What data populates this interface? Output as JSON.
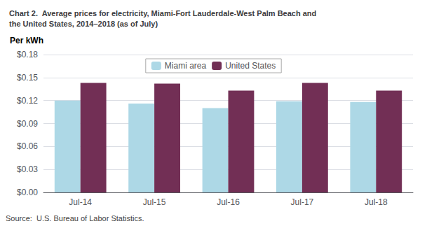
{
  "chart_data": {
    "type": "bar",
    "title": "Chart 2.  Average prices for electricity, Miami-Fort Lauderdale-West Palm Beach and\nthe United States, 2014–2018 (as of July)",
    "ylabel": "Per kWh",
    "categories": [
      "Jul-14",
      "Jul-15",
      "Jul-16",
      "Jul-17",
      "Jul-18"
    ],
    "series": [
      {
        "name": "Miami area",
        "color": "#ADD8E6",
        "values": [
          0.12,
          0.116,
          0.11,
          0.119,
          0.118
        ]
      },
      {
        "name": "United States",
        "color": "#722F55",
        "values": [
          0.143,
          0.142,
          0.133,
          0.143,
          0.133
        ]
      }
    ],
    "ylim": [
      0.0,
      0.18
    ],
    "yticks": [
      {
        "value": 0.0,
        "label": "$0.00"
      },
      {
        "value": 0.03,
        "label": "$0.03"
      },
      {
        "value": 0.06,
        "label": "$0.06"
      },
      {
        "value": 0.09,
        "label": "$0.09"
      },
      {
        "value": 0.12,
        "label": "$0.12"
      },
      {
        "value": 0.15,
        "label": "$0.15"
      },
      {
        "value": 0.18,
        "label": "$0.18"
      }
    ],
    "grid": true,
    "legend": "top",
    "annotations": [
      "Source:  U.S. Bureau of Labor Statistics."
    ]
  }
}
